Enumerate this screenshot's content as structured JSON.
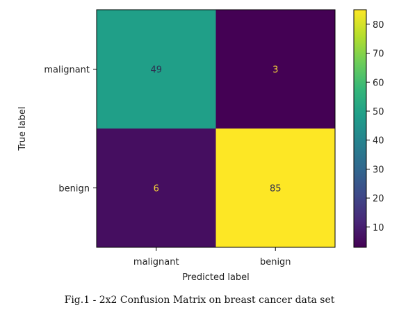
{
  "chart_data": {
    "type": "heatmap",
    "title": "",
    "xlabel": "Predicted label",
    "ylabel": "True label",
    "x_categories": [
      "malignant",
      "benign"
    ],
    "y_categories": [
      "malignant",
      "benign"
    ],
    "values": [
      [
        49,
        3
      ],
      [
        6,
        85
      ]
    ],
    "colormap": "viridis",
    "colorbar": {
      "min": 3,
      "max": 85,
      "ticks": [
        10,
        20,
        30,
        40,
        50,
        60,
        70,
        80
      ]
    },
    "grid": false
  },
  "caption": "Fig.1 - 2x2 Confusion Matrix on breast cancer data set"
}
